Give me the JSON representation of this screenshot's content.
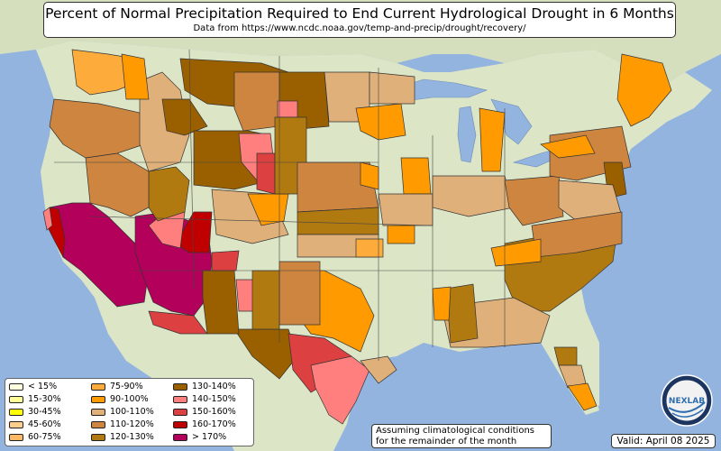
{
  "title": "Percent of Normal Precipitation Required to End Current Hydrological Drought in 6 Months",
  "subtitle": "Data from https://www.ncdc.noaa.gov/temp-and-precip/drought/recovery/",
  "note_line1": "Assuming climatological conditions",
  "note_line2": "for the remainder of the month",
  "valid": "Valid: April 08 2025",
  "logo_text": "NEXLAB",
  "legend": [
    {
      "label": "< 15%",
      "color": "#ffffe0"
    },
    {
      "label": "15-30%",
      "color": "#ffff99"
    },
    {
      "label": "30-45%",
      "color": "#ffff00"
    },
    {
      "label": "45-60%",
      "color": "#fdce8e"
    },
    {
      "label": "60-75%",
      "color": "#fdb863"
    },
    {
      "label": "75-90%",
      "color": "#fdab3a"
    },
    {
      "label": "90-100%",
      "color": "#ff9a00"
    },
    {
      "label": "100-110%",
      "color": "#dfb07a"
    },
    {
      "label": "110-120%",
      "color": "#cd853f"
    },
    {
      "label": "120-130%",
      "color": "#b07a10"
    },
    {
      "label": "130-140%",
      "color": "#9a6000"
    },
    {
      "label": "140-150%",
      "color": "#ff7f7f"
    },
    {
      "label": "150-160%",
      "color": "#dc4040"
    },
    {
      "label": "160-170%",
      "color": "#c00000"
    },
    {
      "label": "> 170%",
      "color": "#b3005a"
    }
  ],
  "colors": {
    "water": "#94b4e0",
    "land": "#dce6c6",
    "land_dark": "#c7d4a8"
  }
}
